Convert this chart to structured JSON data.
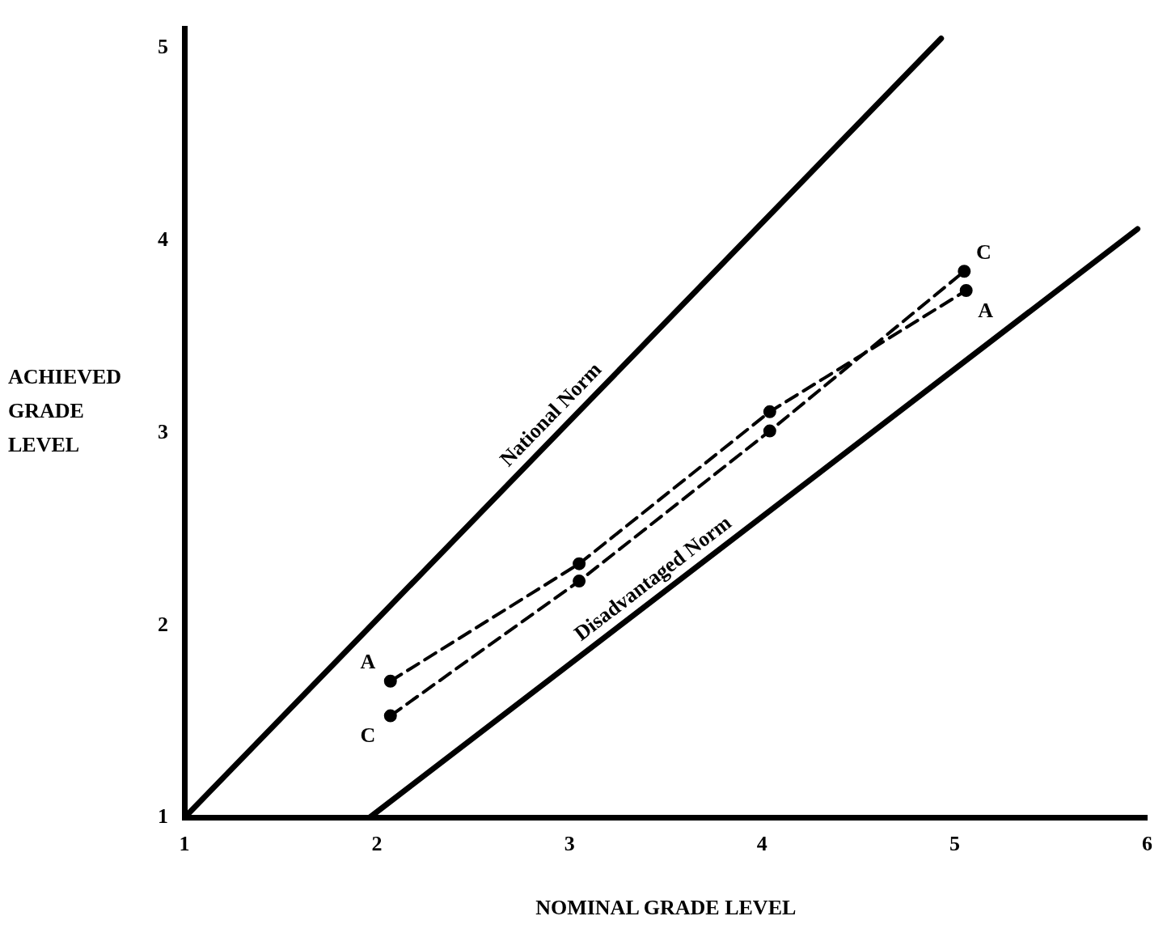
{
  "chart_data": {
    "type": "line",
    "xlabel": "NOMINAL GRADE LEVEL",
    "ylabel": "ACHIEVED GRADE LEVEL",
    "xlim": [
      1,
      6
    ],
    "ylim": [
      1,
      5.1
    ],
    "xticks": [
      1,
      2,
      3,
      4,
      5,
      6
    ],
    "yticks": [
      1,
      2,
      3,
      4,
      5
    ],
    "grid": false,
    "legend": false,
    "series": [
      {
        "color": "#000000",
        "x": [
          1,
          4.93
        ],
        "values": [
          1,
          5.05
        ],
        "marker": "none",
        "line_style": "solid"
      },
      {
        "color": "#000000",
        "x": [
          1.96,
          5.95
        ],
        "values": [
          1,
          4.06
        ],
        "marker": "none",
        "line_style": "solid"
      },
      {
        "name": "A",
        "color": "#000000",
        "x": [
          2.07,
          3.05,
          4.04,
          5.06
        ],
        "values": [
          1.71,
          2.32,
          3.11,
          3.74
        ],
        "marker": "circle",
        "line_style": "dashed"
      },
      {
        "name": "C",
        "color": "#000000",
        "x": [
          2.07,
          3.05,
          4.04,
          5.05
        ],
        "values": [
          1.53,
          2.23,
          3.01,
          3.84
        ],
        "marker": "circle",
        "line_style": "dashed"
      }
    ],
    "annotations": [
      {
        "text": "National Norm",
        "x": 2.97,
        "y": 3.03
      },
      {
        "text": "Disadvantaged Norm",
        "x": 3.49,
        "y": 2.17
      }
    ]
  }
}
